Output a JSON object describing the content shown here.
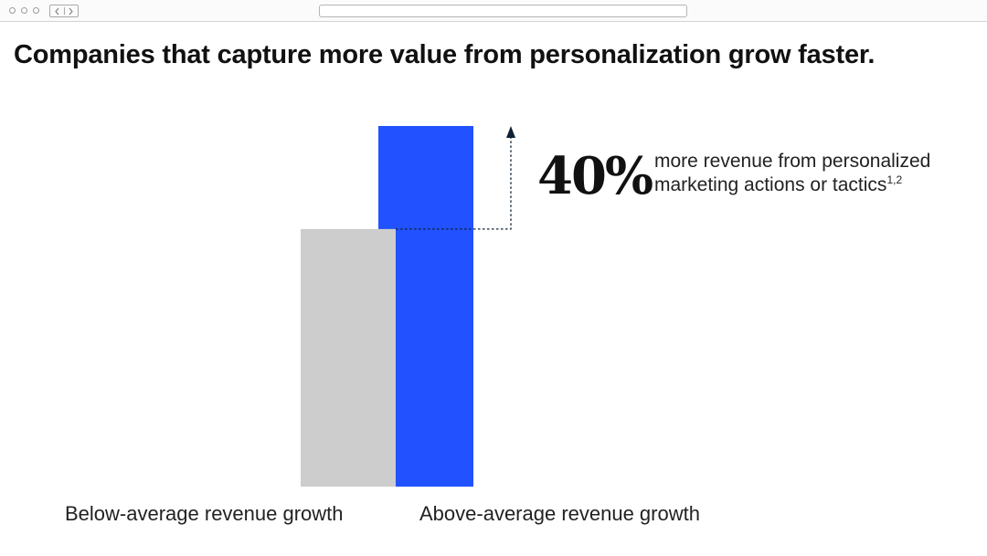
{
  "title": "Companies that capture more value from personalization grow faster.",
  "callout": {
    "value": "40%",
    "text": "more revenue from personalized marketing actions or tactics",
    "footnote": "1,2"
  },
  "colors": {
    "below": "#cdcdcd",
    "above": "#2251ff",
    "annotation": "#0f2233"
  },
  "chart_data": {
    "type": "bar",
    "title": "Companies that capture more value from personalization grow faster.",
    "categories": [
      "Below-average revenue growth",
      "Above-average revenue growth"
    ],
    "values": [
      100,
      140
    ],
    "annotations": [
      "40% more revenue from personalized marketing actions or tactics"
    ],
    "grid": false,
    "ylim": [
      0,
      140
    ]
  }
}
